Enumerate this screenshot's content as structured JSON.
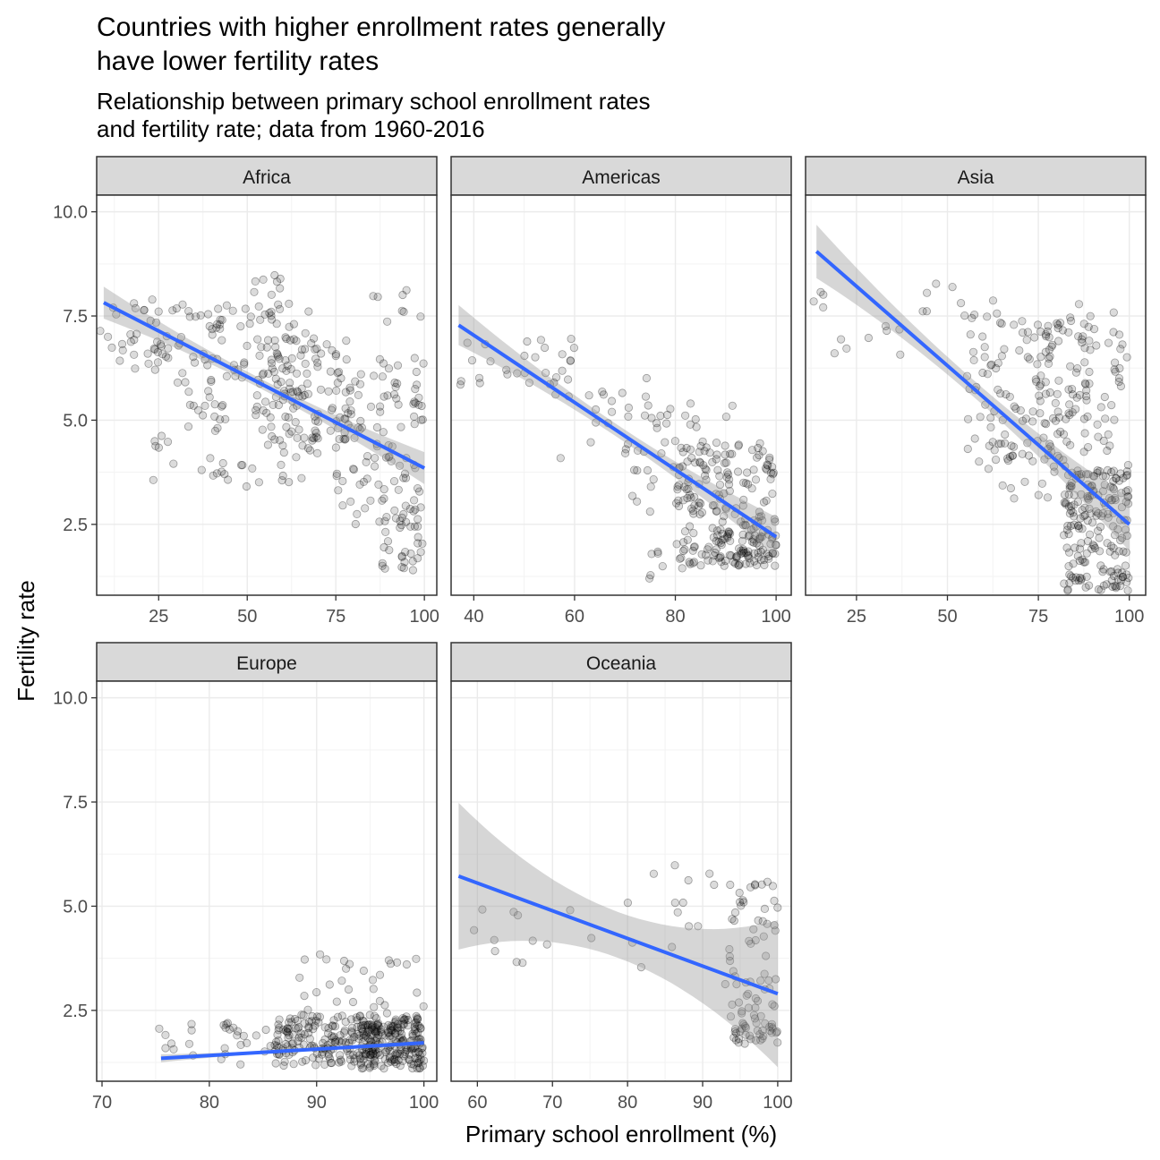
{
  "chart_data": {
    "type": "scatter",
    "title": "Countries with higher enrollment rates generally have lower fertility rates",
    "title_lines": [
      "Countries with higher enrollment rates generally",
      "have lower fertility rates"
    ],
    "subtitle": "Relationship between primary school enrollment rates and fertility rate; data from 1960-2016",
    "subtitle_lines": [
      "Relationship between primary school enrollment rates",
      "and fertility rate; data from 1960-2016"
    ],
    "xlabel": "Primary school enrollment (%)",
    "ylabel": "Fertility rate",
    "ylim": [
      0.8,
      10.4
    ],
    "yticks": [
      2.5,
      5.0,
      7.5,
      10.0
    ],
    "ytick_labels": [
      "2.5",
      "5.0",
      "7.5",
      "10.0"
    ],
    "grid": true,
    "colors": {
      "points": "#000000",
      "trend_line": "#3366FF",
      "ribbon": "#999999",
      "strip_fill": "#d9d9d9",
      "panel_border": "#333333",
      "grid": "#ebebeb"
    },
    "facets": [
      {
        "name": "Africa",
        "xlim": [
          7.5,
          103.5
        ],
        "xticks": [
          25,
          50,
          75,
          100
        ],
        "fit": {
          "x0": 9.5,
          "y0": 7.82,
          "x1": 100,
          "y1": 3.85,
          "se": 0.12
        },
        "clusters": [
          {
            "x": [
              8,
              32
            ],
            "y": [
              6.2,
              7.9
            ],
            "n": 40
          },
          {
            "x": [
              30,
              70
            ],
            "y": [
              5.0,
              7.8
            ],
            "n": 110
          },
          {
            "x": [
              40,
              70
            ],
            "y": [
              3.4,
              5.4
            ],
            "n": 40
          },
          {
            "x": [
              55,
              80
            ],
            "y": [
              4.5,
              7.0
            ],
            "n": 80
          },
          {
            "x": [
              75,
              100
            ],
            "y": [
              2.4,
              6.5
            ],
            "n": 110
          },
          {
            "x": [
              88,
              100
            ],
            "y": [
              1.4,
              3.0
            ],
            "n": 30
          },
          {
            "x": [
              20,
              40
            ],
            "y": [
              3.5,
              5.0
            ],
            "n": 10
          },
          {
            "x": [
              50,
              60
            ],
            "y": [
              8.0,
              8.5
            ],
            "n": 8
          },
          {
            "x": [
              85,
              100
            ],
            "y": [
              7.2,
              8.2
            ],
            "n": 8
          }
        ]
      },
      {
        "name": "Americas",
        "xlim": [
          35.5,
          103
        ],
        "xticks": [
          40,
          60,
          80,
          100
        ],
        "fit": {
          "x0": 37,
          "y0": 7.28,
          "x1": 100,
          "y1": 2.2,
          "se": 0.15
        },
        "clusters": [
          {
            "x": [
              37,
              60
            ],
            "y": [
              5.8,
              7.0
            ],
            "n": 25
          },
          {
            "x": [
              55,
              75
            ],
            "y": [
              4.0,
              6.5
            ],
            "n": 20
          },
          {
            "x": [
              70,
              92
            ],
            "y": [
              2.8,
              5.5
            ],
            "n": 60
          },
          {
            "x": [
              80,
              100
            ],
            "y": [
              1.5,
              4.5
            ],
            "n": 160
          },
          {
            "x": [
              85,
              100
            ],
            "y": [
              1.5,
              2.4
            ],
            "n": 60
          },
          {
            "x": [
              74,
              82
            ],
            "y": [
              1.2,
              2.0
            ],
            "n": 8
          }
        ]
      },
      {
        "name": "Asia",
        "xlim": [
          11,
          104.5
        ],
        "xticks": [
          25,
          50,
          75,
          100
        ],
        "fit": {
          "x0": 14,
          "y0": 9.05,
          "x1": 100,
          "y1": 2.5,
          "se": 0.2
        },
        "clusters": [
          {
            "x": [
              12,
              40
            ],
            "y": [
              6.5,
              8.3
            ],
            "n": 12
          },
          {
            "x": [
              40,
              65
            ],
            "y": [
              7.5,
              8.3
            ],
            "n": 10
          },
          {
            "x": [
              55,
              90
            ],
            "y": [
              4.0,
              7.5
            ],
            "n": 120
          },
          {
            "x": [
              75,
              100
            ],
            "y": [
              2.5,
              7.8
            ],
            "n": 90
          },
          {
            "x": [
              82,
              100
            ],
            "y": [
              0.9,
              3.8
            ],
            "n": 180
          },
          {
            "x": [
              60,
              75
            ],
            "y": [
              3.0,
              4.5
            ],
            "n": 12
          }
        ]
      },
      {
        "name": "Europe",
        "xlim": [
          69.5,
          101.2
        ],
        "xticks": [
          70,
          80,
          90,
          100
        ],
        "fit": {
          "x0": 75.5,
          "y0": 1.35,
          "x1": 100,
          "y1": 1.72,
          "se": 0.03
        },
        "clusters": [
          {
            "x": [
              75,
              88
            ],
            "y": [
              1.2,
              2.2
            ],
            "n": 40
          },
          {
            "x": [
              86,
              100
            ],
            "y": [
              1.1,
              2.4
            ],
            "n": 250
          },
          {
            "x": [
              94,
              100
            ],
            "y": [
              1.3,
              2.2
            ],
            "n": 120
          },
          {
            "x": [
              88,
              100
            ],
            "y": [
              2.3,
              3.9
            ],
            "n": 30
          }
        ]
      },
      {
        "name": "Oceania",
        "xlim": [
          56.5,
          101.8
        ],
        "xticks": [
          60,
          70,
          80,
          90,
          100
        ],
        "fit": {
          "x0": 57.5,
          "y0": 5.72,
          "x1": 100,
          "y1": 2.9,
          "se": 0.55
        },
        "clusters": [
          {
            "x": [
              58,
              80
            ],
            "y": [
              3.6,
              5.0
            ],
            "n": 12
          },
          {
            "x": [
              80,
              92
            ],
            "y": [
              3.2,
              6.0
            ],
            "n": 14
          },
          {
            "x": [
              93,
              100
            ],
            "y": [
              2.2,
              5.6
            ],
            "n": 60
          },
          {
            "x": [
              94,
              100
            ],
            "y": [
              1.7,
              2.2
            ],
            "n": 35
          }
        ]
      }
    ]
  }
}
